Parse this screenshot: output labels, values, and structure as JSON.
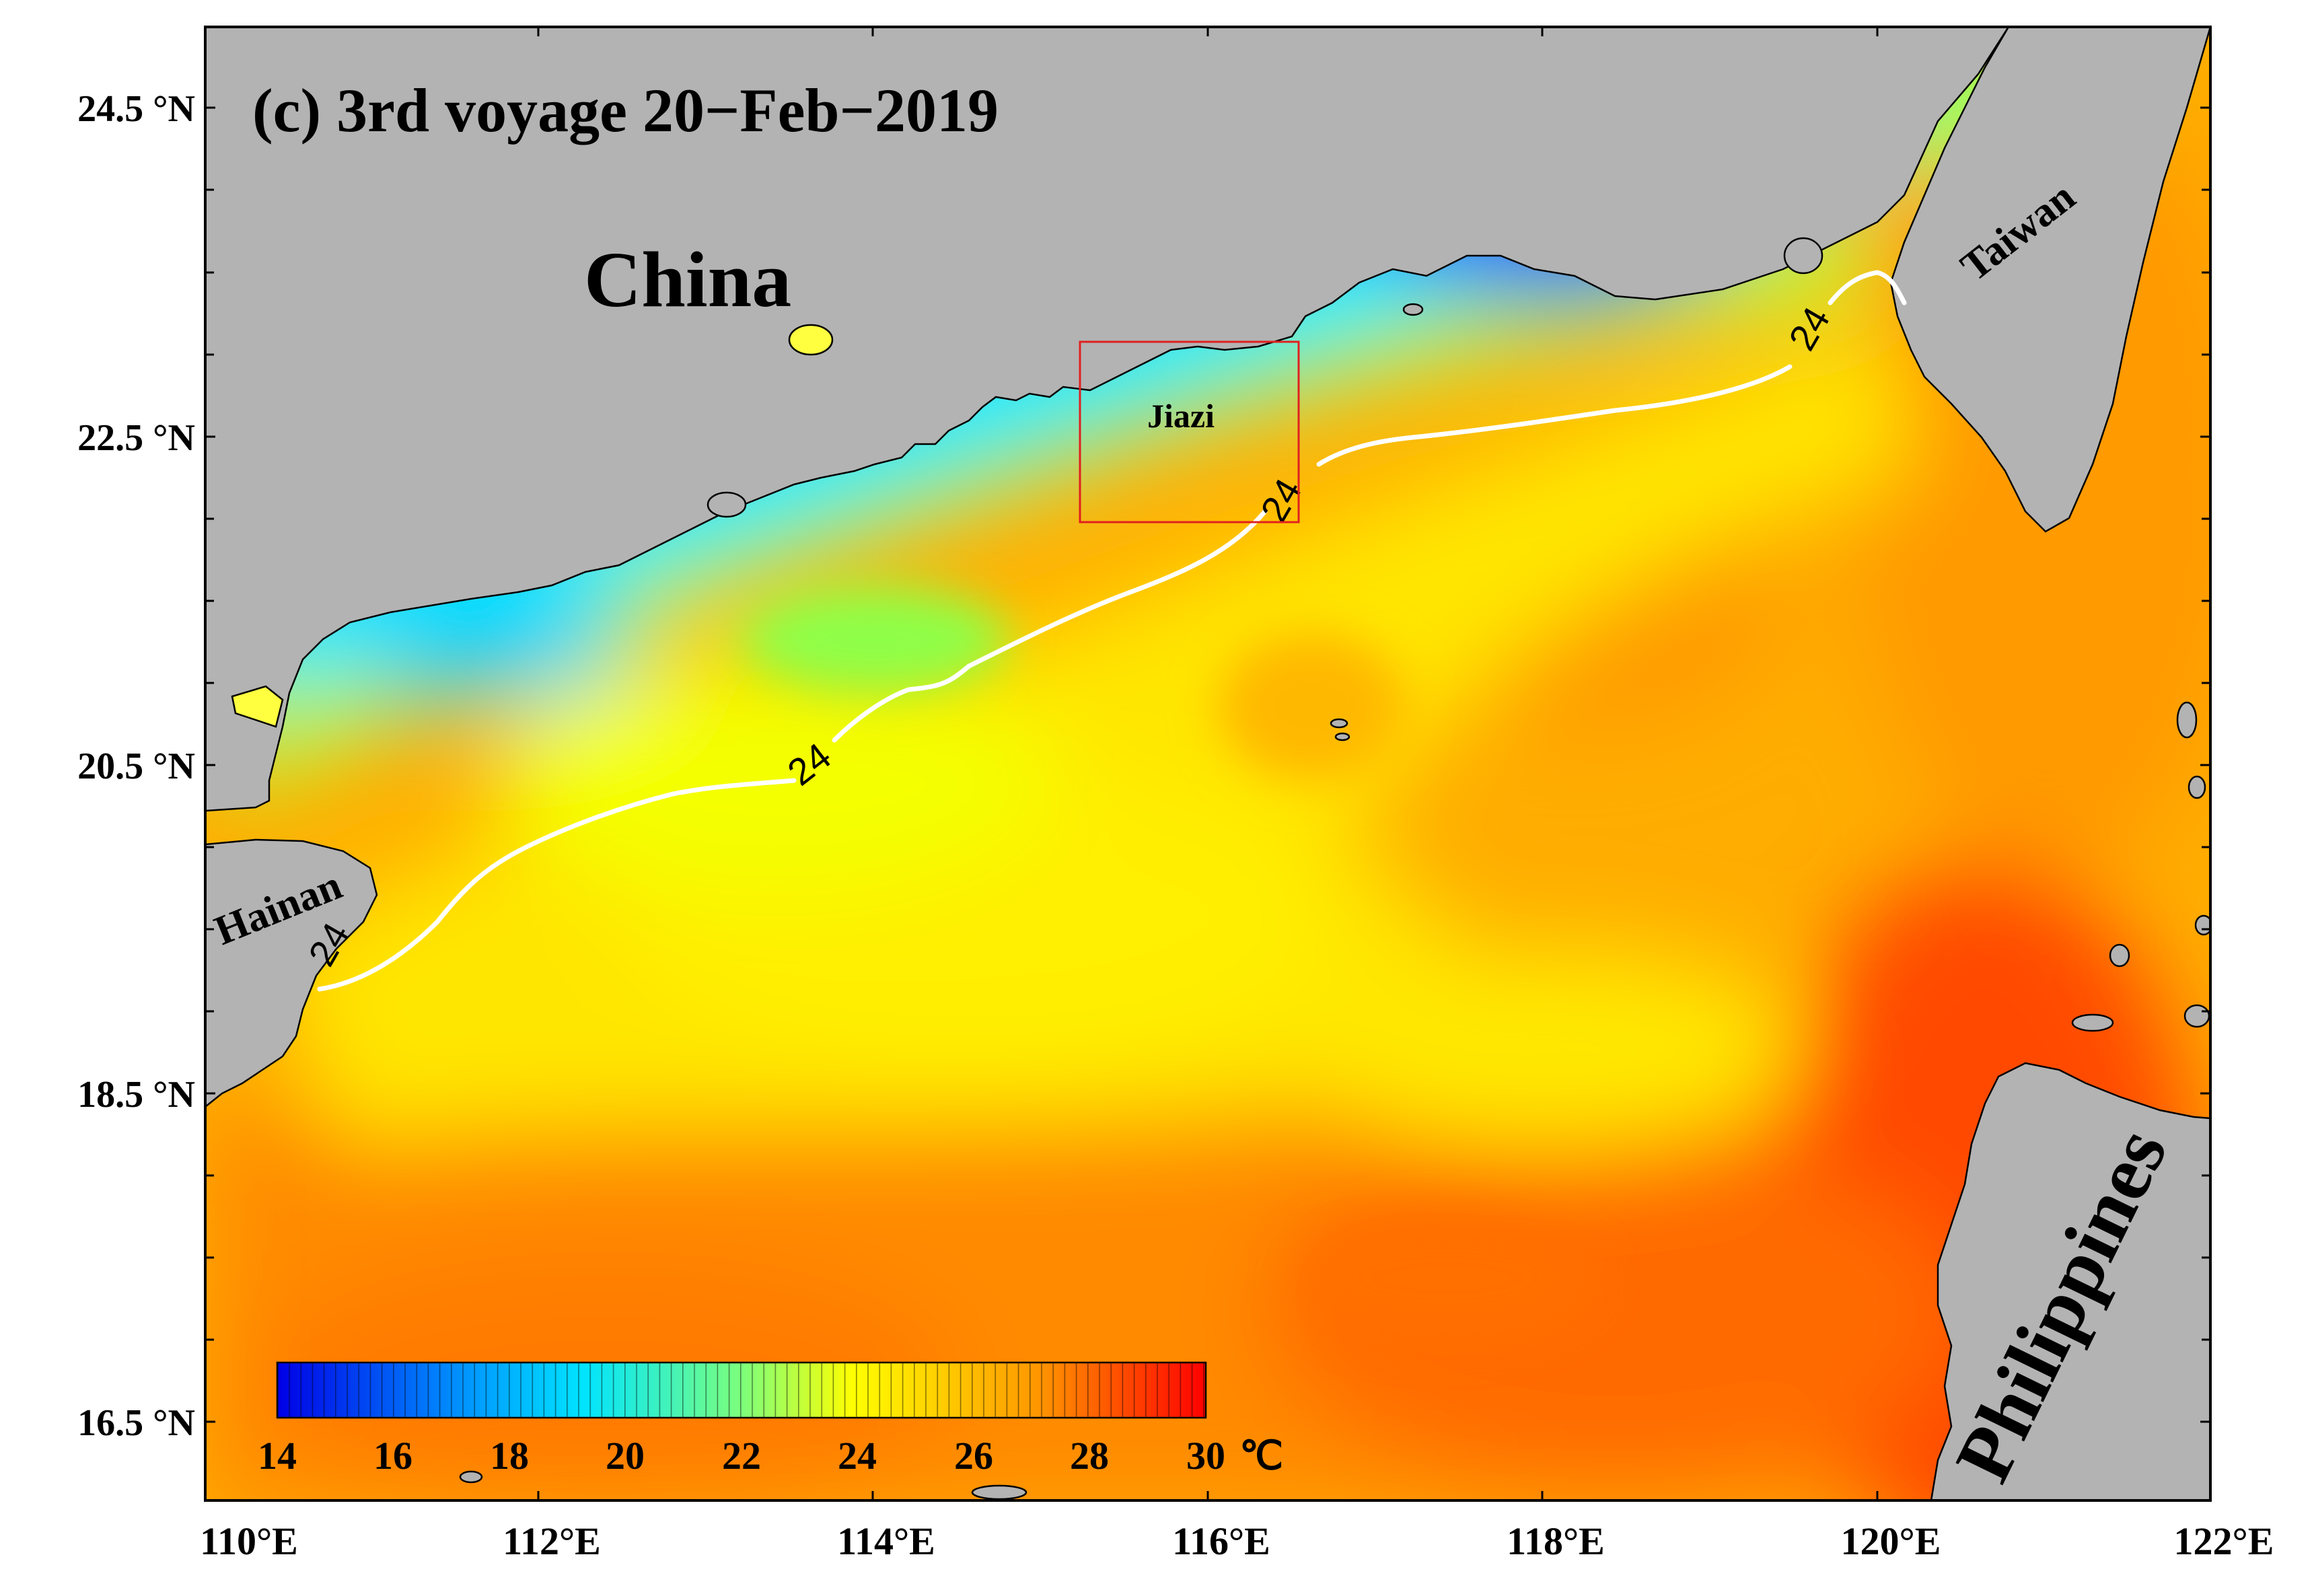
{
  "title": "(c) 3rd voyage 20−Feb−2019",
  "map": {
    "x_ticks": [
      "110°E",
      "112°E",
      "114°E",
      "116°E",
      "118°E",
      "120°E",
      "122°E"
    ],
    "y_ticks": [
      "24.5 °N",
      "22.5 °N",
      "20.5 °N",
      "18.5 °N",
      "16.5 °N"
    ],
    "x_range_deg_e": [
      110,
      122
    ],
    "y_range_deg_n": [
      15.95,
      24.95
    ]
  },
  "places": {
    "china": "China",
    "taiwan": "Taiwan",
    "hainan": "Hainan",
    "philippines": "Philippines",
    "jiazi": "Jiazi"
  },
  "contour": {
    "level": "24",
    "color": "#ffffff"
  },
  "colorbar": {
    "ticks": [
      "14",
      "16",
      "18",
      "20",
      "22",
      "24",
      "26",
      "28",
      "30"
    ],
    "unit": "℃",
    "range": [
      14,
      30
    ],
    "colors": [
      "#0000e6",
      "#0094ff",
      "#00e4ff",
      "#7cff7c",
      "#ffff00",
      "#ff9600",
      "#ff0000"
    ]
  },
  "colors": {
    "land": "#b3b3b3",
    "study_box": "#e02020"
  }
}
